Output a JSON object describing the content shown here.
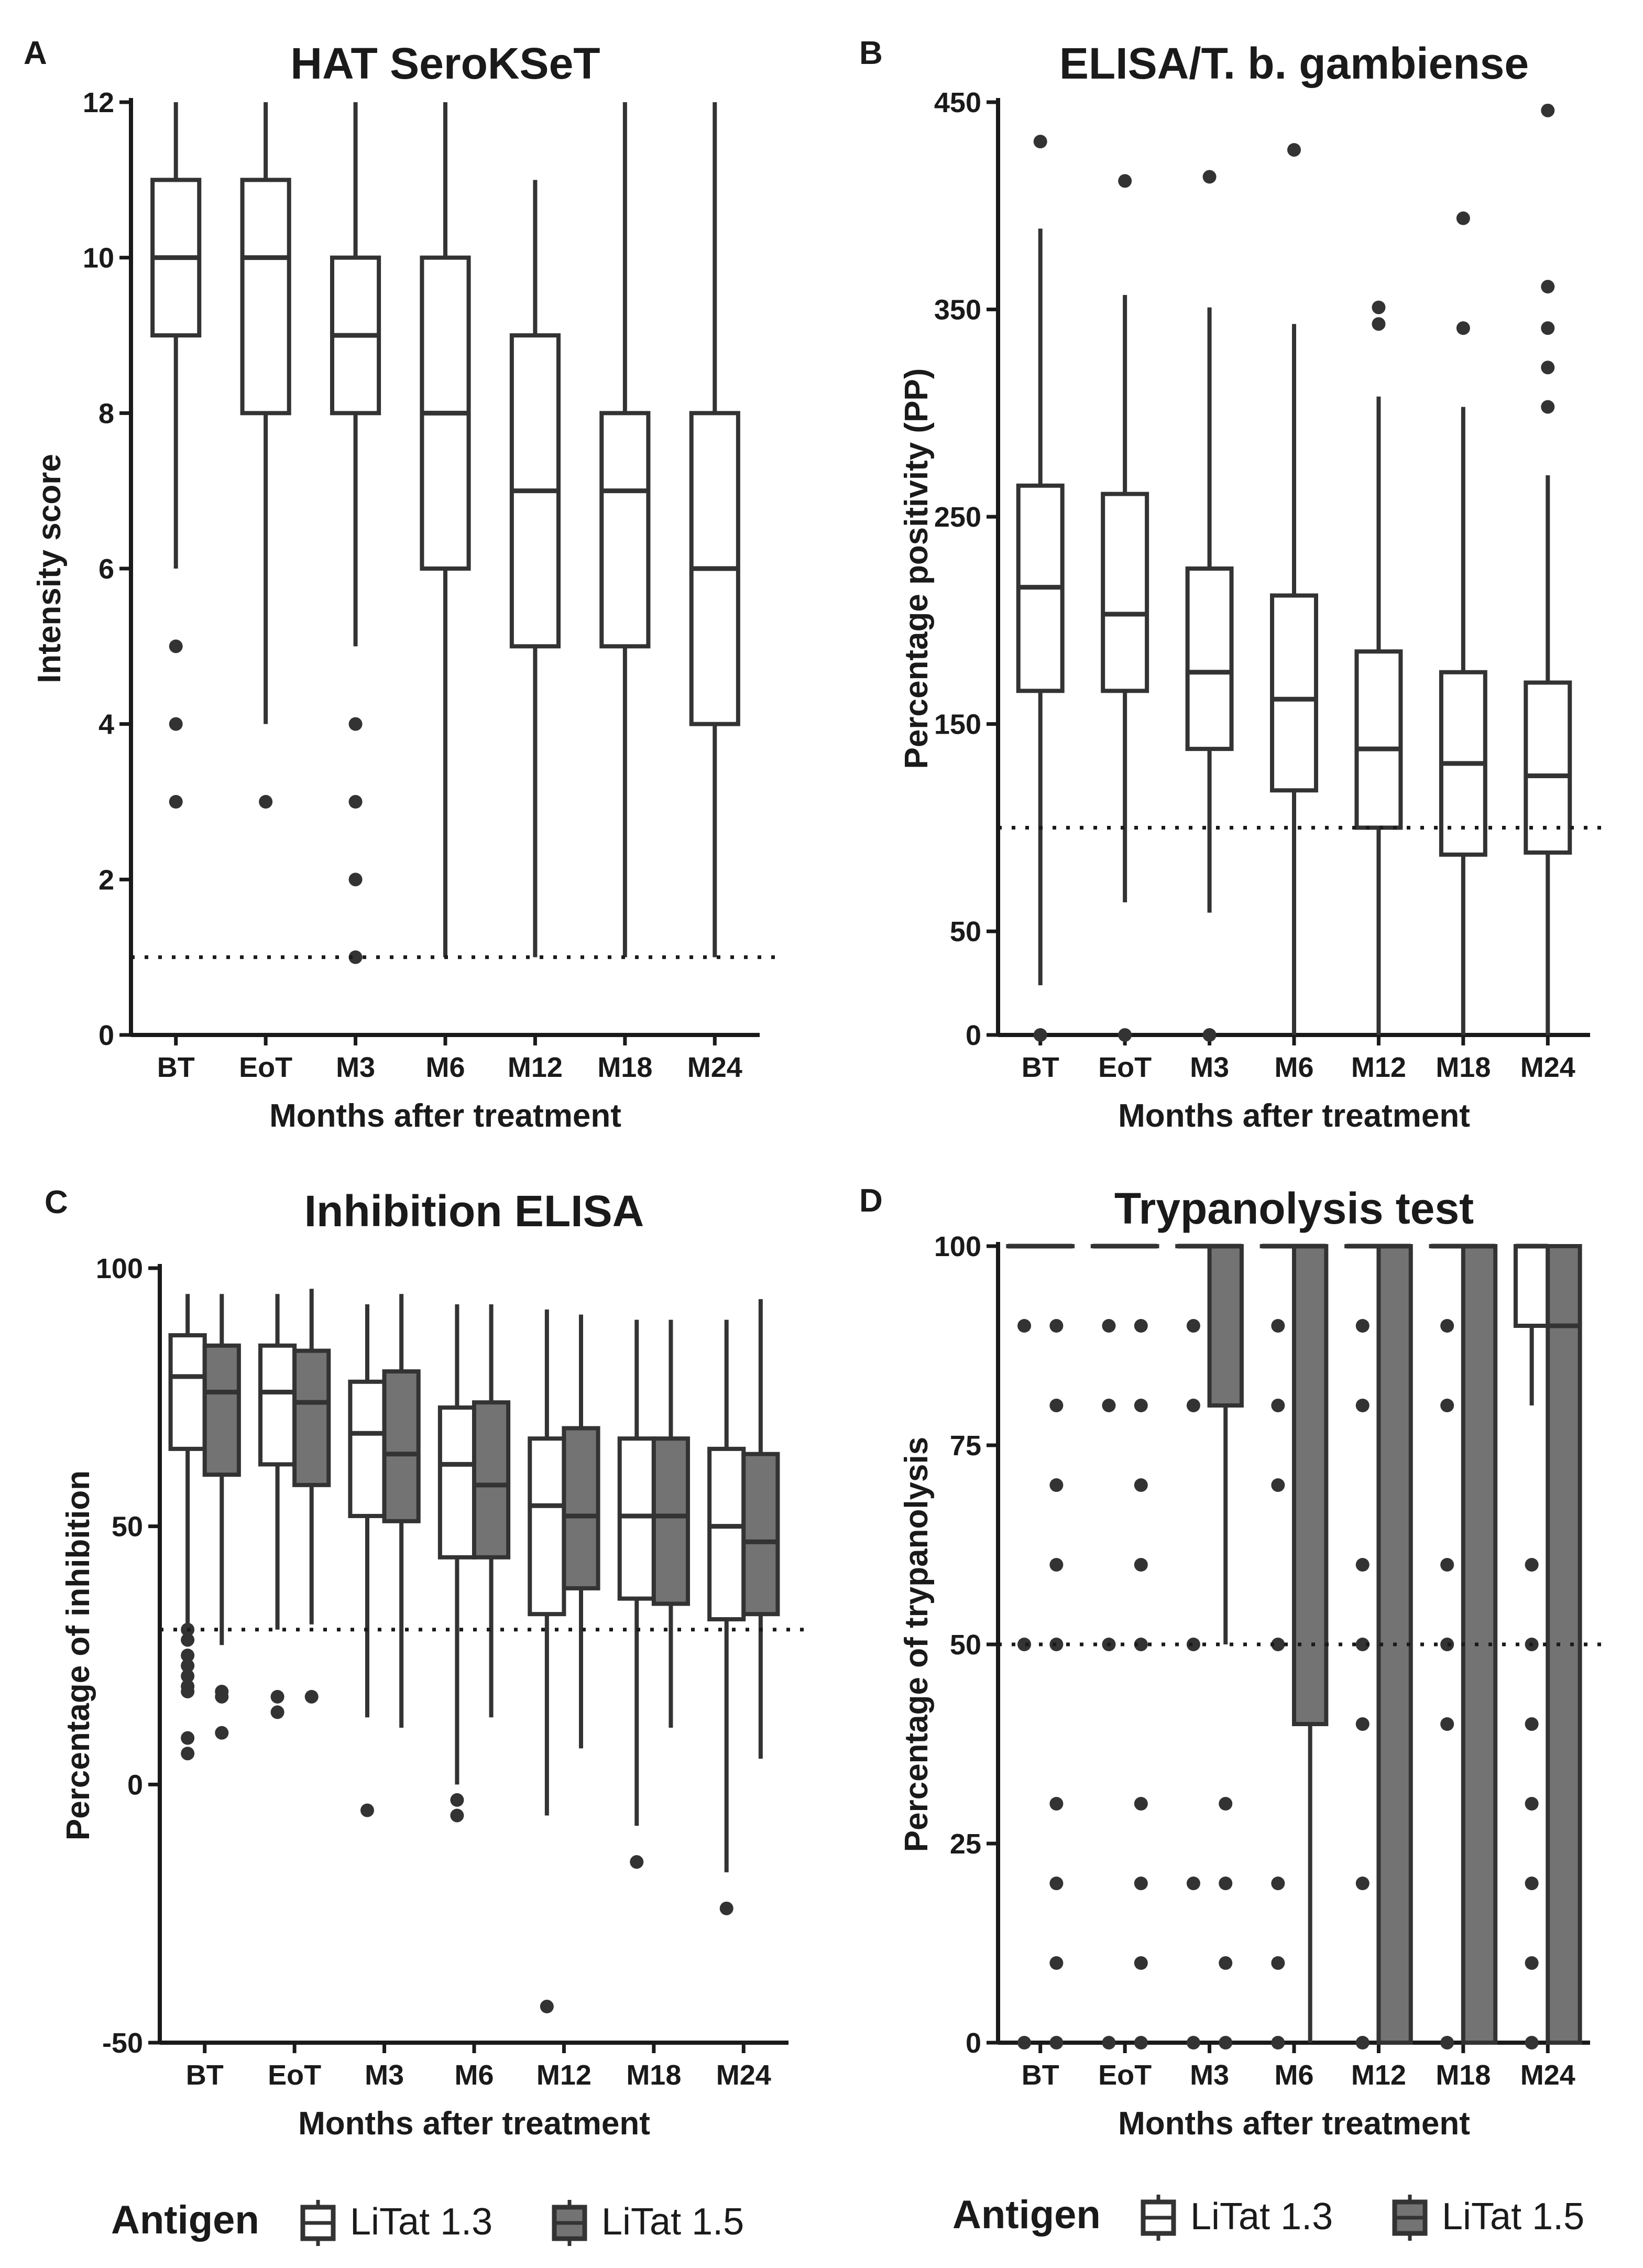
{
  "figure": {
    "legend_title": "Antigen",
    "legend_items": [
      "LiTat 1.3",
      "LiTat 1.5"
    ],
    "colors": {
      "stroke": "#333333",
      "fill_litat13": "#ffffff",
      "fill_litat15": "#737373",
      "text": "#1a1a1a"
    }
  },
  "chart_data": [
    {
      "id": "A",
      "type": "boxplot",
      "letter": "A",
      "title": "HAT SeroKSeT",
      "xlabel": "Months after treatment",
      "ylabel": "Intensity score",
      "ylim": [
        0,
        12
      ],
      "yticks": [
        0,
        2,
        4,
        6,
        8,
        10,
        12
      ],
      "cutoff": 1,
      "categories": [
        "BT",
        "EoT",
        "M3",
        "M6",
        "M12",
        "M18",
        "M24"
      ],
      "series": [
        {
          "name": "all",
          "boxes": [
            {
              "q1": 9,
              "median": 10,
              "q3": 11,
              "lo": 6,
              "hi": 12,
              "outliers": [
                5,
                4,
                3
              ]
            },
            {
              "q1": 8,
              "median": 10,
              "q3": 11,
              "lo": 4,
              "hi": 12,
              "outliers": [
                3
              ]
            },
            {
              "q1": 8,
              "median": 9,
              "q3": 10,
              "lo": 5,
              "hi": 12,
              "outliers": [
                4,
                3,
                2,
                1
              ]
            },
            {
              "q1": 6,
              "median": 8,
              "q3": 10,
              "lo": 1,
              "hi": 12,
              "outliers": []
            },
            {
              "q1": 5,
              "median": 7,
              "q3": 9,
              "lo": 1,
              "hi": 11,
              "outliers": []
            },
            {
              "q1": 5,
              "median": 7,
              "q3": 8,
              "lo": 1,
              "hi": 12,
              "outliers": []
            },
            {
              "q1": 4,
              "median": 6,
              "q3": 8,
              "lo": 1,
              "hi": 12,
              "outliers": []
            }
          ]
        }
      ]
    },
    {
      "id": "B",
      "type": "boxplot",
      "letter": "B",
      "title": "ELISA/T. b. gambiense",
      "xlabel": "Months after treatment",
      "ylabel": "Percentage positivity (PP)",
      "ylim": [
        0,
        450
      ],
      "yticks": [
        0,
        50,
        150,
        250,
        350,
        450
      ],
      "cutoff": 100,
      "categories": [
        "BT",
        "EoT",
        "M3",
        "M6",
        "M12",
        "M18",
        "M24"
      ],
      "series": [
        {
          "name": "all",
          "boxes": [
            {
              "q1": 166,
              "median": 216,
              "q3": 265,
              "lo": 24,
              "hi": 389,
              "outliers": [
                0,
                431
              ]
            },
            {
              "q1": 166,
              "median": 203,
              "q3": 261,
              "lo": 64,
              "hi": 357,
              "outliers": [
                0,
                412
              ]
            },
            {
              "q1": 138,
              "median": 175,
              "q3": 225,
              "lo": 59,
              "hi": 351,
              "outliers": [
                0,
                414
              ]
            },
            {
              "q1": 118,
              "median": 162,
              "q3": 212,
              "lo": 0,
              "hi": 343,
              "outliers": [
                427
              ]
            },
            {
              "q1": 100,
              "median": 138,
              "q3": 185,
              "lo": 0,
              "hi": 308,
              "outliers": [
                343,
                351
              ]
            },
            {
              "q1": 87,
              "median": 131,
              "q3": 175,
              "lo": 0,
              "hi": 303,
              "outliers": [
                341,
                394
              ]
            },
            {
              "q1": 88,
              "median": 125,
              "q3": 170,
              "lo": 0,
              "hi": 270,
              "outliers": [
                303,
                322,
                341,
                361,
                446
              ]
            }
          ]
        }
      ]
    },
    {
      "id": "C",
      "type": "boxplot",
      "letter": "C",
      "title": "Inhibition ELISA",
      "xlabel": "Months after treatment",
      "ylabel": "Percentage of inhibition",
      "ylim": [
        -50,
        100
      ],
      "yticks": [
        -50,
        0,
        50,
        100
      ],
      "cutoff": 30,
      "categories": [
        "BT",
        "EoT",
        "M3",
        "M6",
        "M12",
        "M18",
        "M24"
      ],
      "series": [
        {
          "name": "LiTat 1.3",
          "boxes": [
            {
              "q1": 65,
              "median": 79,
              "q3": 87,
              "lo": 31,
              "hi": 95,
              "outliers": [
                30,
                28,
                25,
                23,
                21,
                19,
                18,
                9,
                6
              ]
            },
            {
              "q1": 62,
              "median": 76,
              "q3": 85,
              "lo": 30,
              "hi": 95,
              "outliers": [
                17,
                14
              ]
            },
            {
              "q1": 52,
              "median": 68,
              "q3": 78,
              "lo": 13,
              "hi": 93,
              "outliers": [
                -5
              ]
            },
            {
              "q1": 44,
              "median": 62,
              "q3": 73,
              "lo": 0,
              "hi": 93,
              "outliers": [
                -3,
                -6
              ]
            },
            {
              "q1": 33,
              "median": 54,
              "q3": 67,
              "lo": -6,
              "hi": 92,
              "outliers": [
                -43
              ]
            },
            {
              "q1": 36,
              "median": 52,
              "q3": 67,
              "lo": -8,
              "hi": 90,
              "outliers": [
                -15
              ]
            },
            {
              "q1": 32,
              "median": 50,
              "q3": 65,
              "lo": -17,
              "hi": 90,
              "outliers": [
                -24
              ]
            }
          ]
        },
        {
          "name": "LiTat 1.5",
          "boxes": [
            {
              "q1": 60,
              "median": 76,
              "q3": 85,
              "lo": 27,
              "hi": 95,
              "outliers": [
                18,
                17,
                10
              ]
            },
            {
              "q1": 58,
              "median": 74,
              "q3": 84,
              "lo": 31,
              "hi": 96,
              "outliers": [
                17
              ]
            },
            {
              "q1": 51,
              "median": 64,
              "q3": 80,
              "lo": 11,
              "hi": 95,
              "outliers": []
            },
            {
              "q1": 44,
              "median": 58,
              "q3": 74,
              "lo": 13,
              "hi": 93,
              "outliers": []
            },
            {
              "q1": 38,
              "median": 52,
              "q3": 69,
              "lo": 7,
              "hi": 91,
              "outliers": []
            },
            {
              "q1": 35,
              "median": 52,
              "q3": 67,
              "lo": 11,
              "hi": 90,
              "outliers": []
            },
            {
              "q1": 33,
              "median": 47,
              "q3": 64,
              "lo": 5,
              "hi": 94,
              "outliers": []
            }
          ]
        }
      ]
    },
    {
      "id": "D",
      "type": "boxplot",
      "letter": "D",
      "title": "Trypanolysis test",
      "xlabel": "Months after treatment",
      "ylabel": "Percentage of trypanolysis",
      "ylim": [
        0,
        100
      ],
      "yticks": [
        0,
        25,
        50,
        75,
        100
      ],
      "cutoff": 50,
      "categories": [
        "BT",
        "EoT",
        "M3",
        "M6",
        "M12",
        "M18",
        "M24"
      ],
      "series": [
        {
          "name": "LiTat 1.3",
          "boxes": [
            {
              "q1": 100,
              "median": 100,
              "q3": 100,
              "lo": 100,
              "hi": 100,
              "outliers": [
                90,
                50,
                0
              ]
            },
            {
              "q1": 100,
              "median": 100,
              "q3": 100,
              "lo": 100,
              "hi": 100,
              "outliers": [
                90,
                80,
                50,
                0
              ]
            },
            {
              "q1": 100,
              "median": 100,
              "q3": 100,
              "lo": 100,
              "hi": 100,
              "outliers": [
                90,
                80,
                50,
                20,
                0
              ]
            },
            {
              "q1": 100,
              "median": 100,
              "q3": 100,
              "lo": 100,
              "hi": 100,
              "outliers": [
                90,
                80,
                70,
                50,
                20,
                10,
                0
              ]
            },
            {
              "q1": 100,
              "median": 100,
              "q3": 100,
              "lo": 100,
              "hi": 100,
              "outliers": [
                90,
                80,
                60,
                50,
                40,
                20,
                0
              ]
            },
            {
              "q1": 100,
              "median": 100,
              "q3": 100,
              "lo": 100,
              "hi": 100,
              "outliers": [
                90,
                80,
                60,
                50,
                40,
                0
              ]
            },
            {
              "q1": 90,
              "median": 100,
              "q3": 100,
              "lo": 80,
              "hi": 100,
              "outliers": [
                60,
                50,
                40,
                30,
                20,
                10,
                0
              ]
            }
          ]
        },
        {
          "name": "LiTat 1.5",
          "boxes": [
            {
              "q1": 100,
              "median": 100,
              "q3": 100,
              "lo": 100,
              "hi": 100,
              "outliers": [
                90,
                80,
                70,
                60,
                50,
                30,
                20,
                10,
                0
              ]
            },
            {
              "q1": 100,
              "median": 100,
              "q3": 100,
              "lo": 100,
              "hi": 100,
              "outliers": [
                90,
                80,
                70,
                60,
                50,
                30,
                20,
                10,
                0
              ]
            },
            {
              "q1": 80,
              "median": 100,
              "q3": 100,
              "lo": 50,
              "hi": 100,
              "outliers": [
                30,
                20,
                10,
                0
              ]
            },
            {
              "q1": 40,
              "median": 100,
              "q3": 100,
              "lo": 0,
              "hi": 100,
              "outliers": []
            },
            {
              "q1": 0,
              "median": 100,
              "q3": 100,
              "lo": 0,
              "hi": 100,
              "outliers": []
            },
            {
              "q1": 0,
              "median": 100,
              "q3": 100,
              "lo": 0,
              "hi": 100,
              "outliers": []
            },
            {
              "q1": 0,
              "median": 90,
              "q3": 100,
              "lo": 0,
              "hi": 100,
              "outliers": []
            }
          ]
        }
      ]
    }
  ]
}
